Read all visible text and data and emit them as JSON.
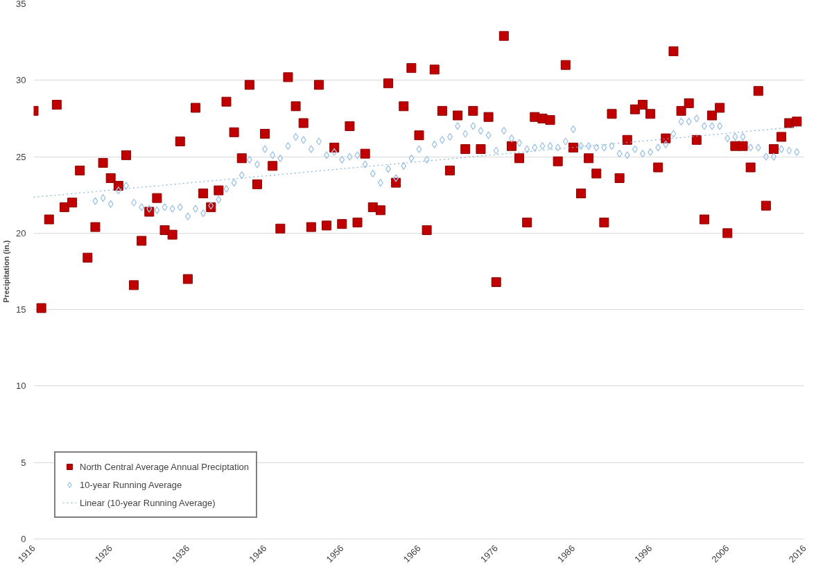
{
  "chart_data": {
    "type": "scatter",
    "ylabel": "Precipitation (in.)",
    "x": [
      1916,
      1917,
      1918,
      1919,
      1920,
      1921,
      1922,
      1923,
      1924,
      1925,
      1926,
      1927,
      1928,
      1929,
      1930,
      1931,
      1932,
      1933,
      1934,
      1935,
      1936,
      1937,
      1938,
      1939,
      1940,
      1941,
      1942,
      1943,
      1944,
      1945,
      1946,
      1947,
      1948,
      1949,
      1950,
      1951,
      1952,
      1953,
      1954,
      1955,
      1956,
      1957,
      1958,
      1959,
      1960,
      1961,
      1962,
      1963,
      1964,
      1965,
      1966,
      1967,
      1968,
      1969,
      1970,
      1971,
      1972,
      1973,
      1974,
      1975,
      1976,
      1977,
      1978,
      1979,
      1980,
      1981,
      1982,
      1983,
      1984,
      1985,
      1986,
      1987,
      1988,
      1989,
      1990,
      1991,
      1992,
      1993,
      1994,
      1995,
      1996,
      1997,
      1998,
      1999,
      2000,
      2001,
      2002,
      2003,
      2004,
      2005,
      2006,
      2007,
      2008,
      2009,
      2010,
      2011,
      2012,
      2013,
      2014,
      2015
    ],
    "series": [
      {
        "name": "North Central Average Annual Preciptation",
        "marker": "square",
        "color": "#c00000",
        "values": [
          28.0,
          15.1,
          20.9,
          28.4,
          21.7,
          22.0,
          24.1,
          18.4,
          20.4,
          24.6,
          23.6,
          23.1,
          25.1,
          16.6,
          19.5,
          21.4,
          22.3,
          20.2,
          19.9,
          26.0,
          17.0,
          28.2,
          22.6,
          21.7,
          22.8,
          28.6,
          26.6,
          24.9,
          29.7,
          23.2,
          26.5,
          24.4,
          20.3,
          30.2,
          28.3,
          27.2,
          20.4,
          29.7,
          20.5,
          25.6,
          20.6,
          27.0,
          20.7,
          25.2,
          21.7,
          21.5,
          29.8,
          23.3,
          28.3,
          30.8,
          26.4,
          20.2,
          30.7,
          28.0,
          24.1,
          27.7,
          25.5,
          28.0,
          25.5,
          27.6,
          16.8,
          32.9,
          25.7,
          24.9,
          20.7,
          27.6,
          27.5,
          27.4,
          24.7,
          31.0,
          25.6,
          22.6,
          24.9,
          23.9,
          20.7,
          27.8,
          23.6,
          26.1,
          28.1,
          28.4,
          27.8,
          24.3,
          26.2,
          31.9,
          28.0,
          28.5,
          26.1,
          20.9,
          27.7,
          28.2,
          20.0,
          25.7,
          25.7,
          24.3,
          29.3,
          21.8,
          25.5,
          26.3,
          27.2,
          27.3
        ]
      },
      {
        "name": "10-year Running Average",
        "marker": "diamond",
        "color": "#9dc3e6",
        "values": [
          null,
          null,
          null,
          null,
          null,
          null,
          null,
          null,
          22.1,
          22.3,
          21.9,
          22.8,
          23.1,
          22.0,
          21.7,
          21.6,
          21.5,
          21.7,
          21.6,
          21.7,
          21.1,
          21.6,
          21.3,
          21.8,
          22.2,
          22.9,
          23.3,
          23.8,
          24.8,
          24.5,
          25.5,
          25.1,
          24.9,
          25.7,
          26.3,
          26.1,
          25.5,
          26.0,
          25.1,
          25.3,
          24.8,
          25.0,
          25.1,
          24.5,
          23.9,
          23.3,
          24.2,
          23.6,
          24.4,
          24.9,
          25.5,
          24.8,
          25.8,
          26.1,
          26.3,
          27.0,
          26.5,
          27.0,
          26.7,
          26.4,
          25.4,
          26.7,
          26.2,
          25.9,
          25.5,
          25.6,
          25.7,
          25.7,
          25.6,
          26.0,
          26.8,
          25.7,
          25.7,
          25.6,
          25.6,
          25.7,
          25.2,
          25.1,
          25.5,
          25.2,
          25.3,
          25.6,
          25.8,
          26.5,
          27.3,
          27.3,
          27.5,
          27.0,
          27.0,
          27.0,
          26.2,
          26.3,
          26.3,
          25.6,
          25.6,
          25.0,
          25.0,
          25.5,
          25.4,
          25.3
        ]
      },
      {
        "name": "Linear (10-year Running Average)",
        "type": "line",
        "line_style": "dotted",
        "color": "#7fb2d8",
        "x": [
          1916,
          2016
        ],
        "values": [
          22.35,
          27.0
        ]
      }
    ],
    "xlim": [
      1916,
      2016
    ],
    "xticks": [
      1916,
      1926,
      1936,
      1946,
      1956,
      1966,
      1976,
      1986,
      1996,
      2006,
      2016
    ],
    "ylim": [
      0,
      35
    ],
    "yticks": [
      0,
      5,
      10,
      15,
      20,
      25,
      30,
      35
    ],
    "grid": "y",
    "legend": "bottom left"
  }
}
